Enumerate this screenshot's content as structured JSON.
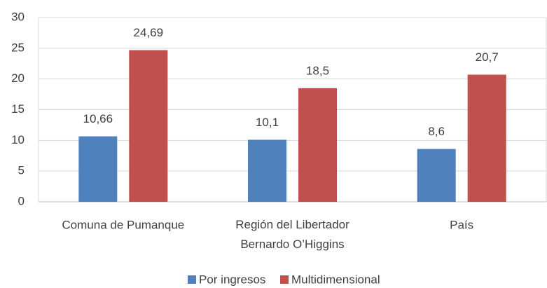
{
  "chart_data": {
    "type": "bar",
    "categories": [
      "Comuna de Pumanque",
      "Región del Libertador\nBernardo O’Higgins",
      "País"
    ],
    "series": [
      {
        "name": "Por ingresos",
        "color": "#4f81bd",
        "values": [
          10.66,
          10.1,
          8.6
        ],
        "value_labels": [
          "10,66",
          "10,1",
          "8,6"
        ]
      },
      {
        "name": "Multidimensional",
        "color": "#c0504d",
        "values": [
          24.69,
          18.5,
          20.7
        ],
        "value_labels": [
          "24,69",
          "18,5",
          "20,7"
        ]
      }
    ],
    "ylim": [
      0,
      30
    ],
    "yticks": [
      0,
      5,
      10,
      15,
      20,
      25,
      30
    ],
    "grid": true,
    "legend": "bottom"
  }
}
